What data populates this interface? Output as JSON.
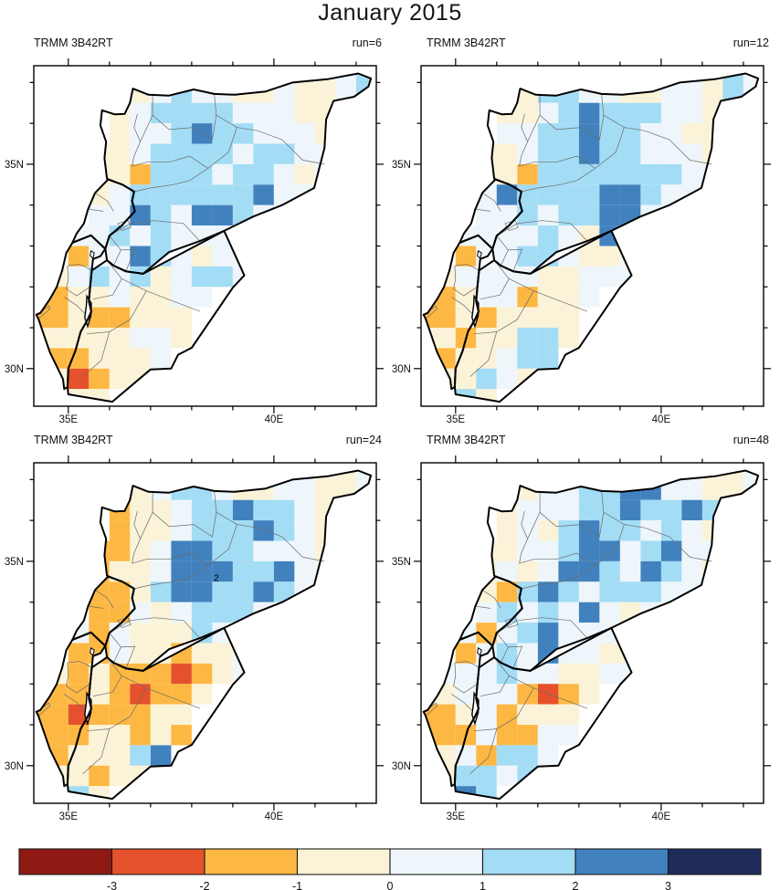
{
  "title": "January 2015",
  "axes": {
    "lon_ticks": [
      {
        "lon": 35,
        "label": "35E"
      },
      {
        "lon": 36
      },
      {
        "lon": 37
      },
      {
        "lon": 38
      },
      {
        "lon": 39
      },
      {
        "lon": 40,
        "label": "40E"
      },
      {
        "lon": 41
      },
      {
        "lon": 42
      }
    ],
    "lat_ticks": [
      {
        "lat": 37
      },
      {
        "lat": 36
      },
      {
        "lat": 35,
        "label": "35N"
      },
      {
        "lat": 34
      },
      {
        "lat": 33
      },
      {
        "lat": 32
      },
      {
        "lat": 31
      },
      {
        "lat": 30,
        "label": "30N"
      }
    ]
  },
  "panels": [
    {
      "product": "TRMM 3B42RT",
      "run_label": "run=6",
      "annotations": [],
      "grid": [
        "....345443343345",
        "...3455554443344",
        "...34456554443..",
        "..334555545544..",
        "..332555455434..",
        "..34555555644...",
        "..446546654.....",
        ".44545444.......",
        ".244654344......",
        "3454534554......",
        "23343344........",
        "2322333.........",
        "3333443.........",
        "223334..........",
        "31233...........",
        "333............."
      ]
    },
    {
      "product": "TRMM 3B42RT",
      "run_label": "run=12",
      "annotations": [],
      "grid": [
        "....355443344354",
        "...3345655544345",
        "...44556554433..",
        "..334556554443..",
        "..332555555544..",
        "..46555566544...",
        "..445455664.....",
        ".44445436.......",
        ".244554334......",
        "3444433444......",
        "23442334........",
        "2323333.........",
        "3233553.........",
        "233455..........",
        "33543...........",
        "353............."
      ]
    },
    {
      "product": "TRMM 3B42RT",
      "run_label": "run=24",
      "annotations": [
        {
          "text": "2",
          "lon": 38.6,
          "lat": 34.52
        }
      ],
      "grid": [
        "....345543344334",
        "...2334556554344",
        "...23345556543..",
        "..223466554443..",
        "..233466655644..",
        "..22356655654...",
        "..224345554.....",
        ".42433354.......",
        ".224332334......",
        "3232221234......",
        "22321223........",
        "2122233.........",
        "2233232.........",
        "233356..........",
        "33233...........",
        "353............."
      ]
    },
    {
      "product": "TRMM 3B42RT",
      "run_label": "run=48",
      "annotations": [],
      "grid": [
        "....344556644334",
        "...3444556556543",
        "...34356554543..",
        "..334456645644..",
        "..343466546543..",
        "..32565455544...",
        "..454546434.....",
        ".42456444.......",
        ".245464433......",
        "4445443344......",
        "34442123........",
        "2342333.........",
        "2242244.........",
        "342554..........",
        "35545...........",
        "465............."
      ]
    }
  ],
  "colorbar": {
    "colors": [
      "#8e1a13",
      "#e5512d",
      "#fdb843",
      "#fbf3d8",
      "#eef6fb",
      "#a3dcf5",
      "#4182be",
      "#1f2b59"
    ],
    "tick_labels": [
      "-3",
      "-2",
      "-1",
      "0",
      "1",
      "2",
      "3"
    ]
  },
  "map": {
    "domain": {
      "lon_min": 34.16,
      "lon_max": 42.49,
      "lat_min": 29.08,
      "lat_max": 37.41
    },
    "grid_origin": {
      "lon": 34.5,
      "lat": 37.0
    },
    "cell_deg": 0.5,
    "borders": {
      "syria": [
        [
          35.94,
          34.65
        ],
        [
          35.88,
          35.15
        ],
        [
          35.92,
          35.55
        ],
        [
          35.78,
          35.95
        ],
        [
          35.82,
          36.32
        ],
        [
          36.13,
          36.22
        ],
        [
          36.37,
          36.23
        ],
        [
          36.5,
          36.5
        ],
        [
          36.57,
          36.85
        ],
        [
          36.95,
          36.7
        ],
        [
          37.45,
          36.68
        ],
        [
          38.05,
          36.83
        ],
        [
          38.55,
          36.72
        ],
        [
          39.05,
          36.7
        ],
        [
          39.8,
          36.78
        ],
        [
          40.45,
          37.0
        ],
        [
          41.3,
          37.08
        ],
        [
          42.05,
          37.22
        ],
        [
          42.36,
          37.1
        ],
        [
          42.3,
          36.9
        ],
        [
          41.95,
          36.65
        ],
        [
          41.45,
          36.55
        ],
        [
          41.27,
          36.1
        ],
        [
          41.23,
          35.4
        ],
        [
          40.98,
          34.42
        ],
        [
          40.2,
          34.0
        ],
        [
          39.5,
          33.72
        ],
        [
          38.79,
          33.37
        ],
        [
          38.2,
          33.12
        ],
        [
          37.45,
          32.85
        ],
        [
          36.82,
          32.32
        ],
        [
          36.4,
          32.38
        ],
        [
          36.1,
          32.52
        ],
        [
          35.94,
          32.65
        ],
        [
          35.9,
          32.93
        ],
        [
          36.0,
          33.25
        ],
        [
          36.3,
          33.5
        ],
        [
          36.62,
          33.85
        ],
        [
          36.55,
          34.1
        ],
        [
          36.6,
          34.33
        ],
        [
          36.32,
          34.5
        ],
        [
          35.97,
          34.63
        ]
      ],
      "lebanon": [
        [
          35.1,
          33.08
        ],
        [
          35.2,
          33.3
        ],
        [
          35.38,
          33.55
        ],
        [
          35.48,
          33.9
        ],
        [
          35.65,
          34.3
        ],
        [
          35.97,
          34.63
        ],
        [
          36.32,
          34.5
        ],
        [
          36.6,
          34.33
        ],
        [
          36.55,
          34.1
        ],
        [
          36.62,
          33.85
        ],
        [
          36.3,
          33.5
        ],
        [
          36.0,
          33.25
        ],
        [
          35.9,
          32.93
        ],
        [
          35.55,
          33.26
        ]
      ],
      "israel": [
        [
          35.1,
          33.08
        ],
        [
          34.95,
          32.83
        ],
        [
          34.85,
          32.4
        ],
        [
          34.72,
          32.0
        ],
        [
          34.55,
          31.7
        ],
        [
          34.32,
          31.36
        ],
        [
          34.22,
          31.32
        ],
        [
          34.27,
          31.22
        ],
        [
          34.55,
          30.4
        ],
        [
          34.87,
          29.74
        ],
        [
          34.9,
          29.5
        ],
        [
          34.98,
          29.55
        ],
        [
          35.0,
          30.0
        ],
        [
          35.17,
          30.43
        ],
        [
          35.3,
          30.9
        ],
        [
          35.47,
          31.2
        ],
        [
          35.56,
          31.4
        ],
        [
          35.5,
          31.65
        ],
        [
          35.53,
          32.0
        ],
        [
          35.57,
          32.4
        ],
        [
          35.6,
          32.68
        ],
        [
          35.78,
          32.75
        ],
        [
          35.9,
          32.93
        ],
        [
          35.55,
          33.26
        ]
      ],
      "jordan": [
        [
          35.56,
          31.4
        ],
        [
          35.5,
          31.65
        ],
        [
          35.53,
          32.0
        ],
        [
          35.57,
          32.4
        ],
        [
          35.94,
          32.65
        ],
        [
          36.1,
          32.52
        ],
        [
          36.4,
          32.38
        ],
        [
          36.82,
          32.32
        ],
        [
          38.79,
          33.37
        ],
        [
          39.28,
          32.28
        ],
        [
          39.0,
          31.98
        ],
        [
          38.0,
          30.51
        ],
        [
          37.67,
          30.34
        ],
        [
          37.5,
          30.0
        ],
        [
          37.0,
          29.98
        ],
        [
          36.07,
          29.19
        ],
        [
          35.0,
          29.37
        ],
        [
          34.98,
          29.55
        ],
        [
          35.0,
          30.0
        ],
        [
          35.17,
          30.43
        ],
        [
          35.3,
          30.9
        ],
        [
          35.47,
          31.2
        ]
      ],
      "dead_sea": [
        [
          35.45,
          31.77
        ],
        [
          35.56,
          31.6
        ],
        [
          35.55,
          31.3
        ],
        [
          35.47,
          31.03
        ],
        [
          35.4,
          31.25
        ],
        [
          35.44,
          31.55
        ]
      ],
      "galilee": [
        [
          35.55,
          32.88
        ],
        [
          35.63,
          32.83
        ],
        [
          35.6,
          32.7
        ],
        [
          35.53,
          32.76
        ]
      ],
      "admin": [
        [
          [
            36.68,
            36.23
          ],
          [
            36.6,
            35.9
          ],
          [
            36.75,
            35.55
          ],
          [
            36.6,
            35.2
          ],
          [
            36.55,
            34.95
          ]
        ],
        [
          [
            37.05,
            36.68
          ],
          [
            37.05,
            36.2
          ],
          [
            36.75,
            35.55
          ]
        ],
        [
          [
            37.05,
            36.2
          ],
          [
            37.45,
            35.85
          ],
          [
            38.05,
            35.9
          ],
          [
            38.5,
            35.6
          ],
          [
            38.6,
            36.2
          ],
          [
            38.55,
            36.72
          ]
        ],
        [
          [
            38.6,
            36.2
          ],
          [
            39.1,
            35.9
          ],
          [
            39.6,
            35.82
          ],
          [
            40.2,
            35.6
          ],
          [
            40.7,
            35.1
          ],
          [
            41.23,
            35.0
          ]
        ],
        [
          [
            39.1,
            35.9
          ],
          [
            38.9,
            35.3
          ],
          [
            38.4,
            34.9
          ],
          [
            37.95,
            34.6
          ],
          [
            37.55,
            34.5
          ],
          [
            37.0,
            34.42
          ],
          [
            36.6,
            34.33
          ]
        ],
        [
          [
            36.55,
            34.95
          ],
          [
            36.9,
            35.05
          ],
          [
            37.45,
            35.05
          ],
          [
            37.95,
            35.2
          ],
          [
            38.4,
            34.9
          ]
        ],
        [
          [
            36.0,
            33.25
          ],
          [
            36.5,
            33.55
          ],
          [
            37.1,
            33.62
          ],
          [
            37.8,
            33.55
          ],
          [
            38.2,
            33.12
          ]
        ],
        [
          [
            36.2,
            33.55
          ],
          [
            36.45,
            33.62
          ],
          [
            36.52,
            33.45
          ],
          [
            36.3,
            33.38
          ],
          [
            36.2,
            33.55
          ]
        ],
        [
          [
            36.1,
            32.52
          ],
          [
            36.28,
            32.9
          ],
          [
            36.0,
            33.25
          ]
        ],
        [
          [
            36.4,
            32.38
          ],
          [
            36.62,
            32.92
          ],
          [
            36.28,
            32.9
          ]
        ],
        [
          [
            35.94,
            32.65
          ],
          [
            36.3,
            32.2
          ],
          [
            36.9,
            31.9
          ],
          [
            37.55,
            31.65
          ],
          [
            38.2,
            31.4
          ]
        ],
        [
          [
            36.3,
            32.2
          ],
          [
            36.08,
            31.8
          ],
          [
            35.6,
            31.7
          ]
        ],
        [
          [
            36.9,
            31.9
          ],
          [
            36.5,
            31.2
          ],
          [
            36.0,
            30.9
          ],
          [
            35.45,
            30.85
          ]
        ],
        [
          [
            36.0,
            30.9
          ],
          [
            35.8,
            30.2
          ],
          [
            35.35,
            29.8
          ]
        ],
        [
          [
            35.57,
            32.4
          ],
          [
            35.4,
            32.5
          ],
          [
            35.25,
            32.55
          ],
          [
            34.98,
            32.52
          ],
          [
            35.0,
            32.2
          ],
          [
            34.95,
            31.95
          ],
          [
            35.2,
            31.78
          ],
          [
            35.53,
            32.0
          ]
        ],
        [
          [
            34.22,
            31.32
          ],
          [
            34.37,
            31.42
          ],
          [
            34.52,
            31.53
          ],
          [
            34.56,
            31.47
          ],
          [
            34.37,
            31.3
          ],
          [
            34.27,
            31.22
          ]
        ],
        [
          [
            35.65,
            34.3
          ],
          [
            35.95,
            34.1
          ],
          [
            36.1,
            33.85
          ]
        ],
        [
          [
            35.48,
            33.9
          ],
          [
            35.85,
            33.85
          ]
        ],
        [
          [
            34.9,
            31.75
          ],
          [
            35.2,
            31.55
          ],
          [
            35.4,
            31.35
          ]
        ]
      ]
    }
  }
}
